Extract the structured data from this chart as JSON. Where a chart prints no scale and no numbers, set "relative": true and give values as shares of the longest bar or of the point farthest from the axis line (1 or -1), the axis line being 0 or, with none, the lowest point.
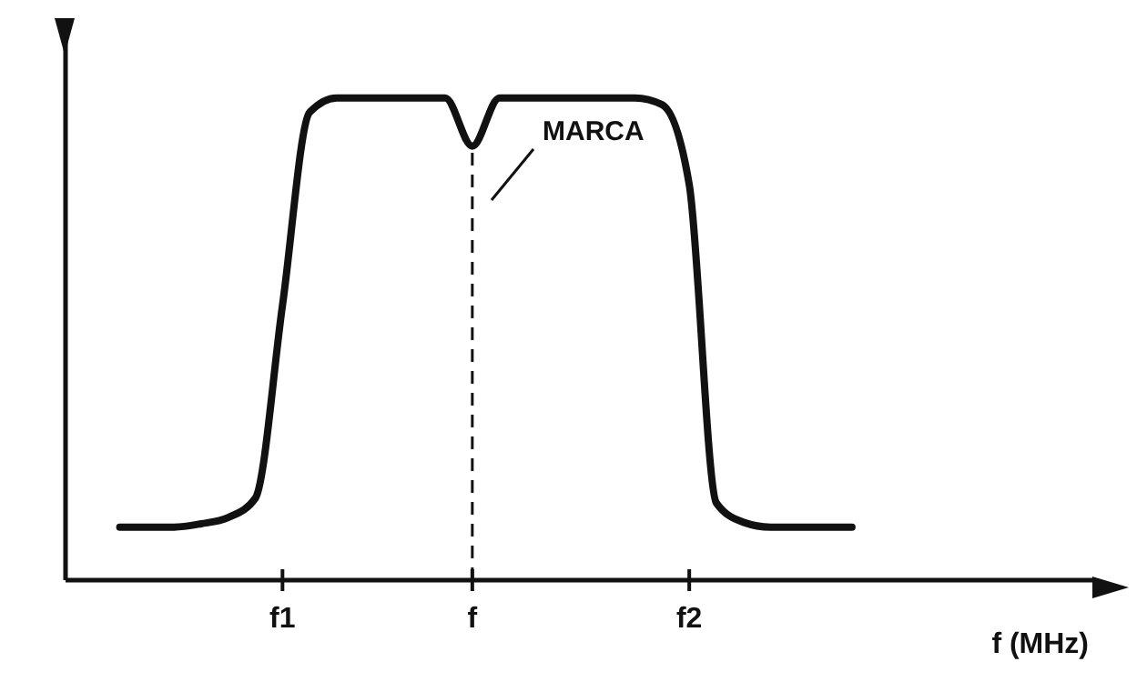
{
  "chart_data": {
    "type": "line",
    "relative": true,
    "xlabel": "f (MHz)",
    "categories": [
      null,
      null,
      null,
      null,
      null,
      null,
      null,
      null,
      "f1",
      null,
      null,
      null,
      null,
      null,
      null,
      "f",
      null,
      null,
      null,
      null,
      null,
      null,
      null,
      "f2",
      null,
      null,
      null,
      null,
      null,
      null,
      null,
      null,
      null,
      null,
      null,
      null,
      null,
      null,
      null
    ],
    "series": [
      {
        "color": "#111111",
        "values": [
          null,
          null,
          0.11,
          0.11,
          0.11,
          0.117,
          0.13,
          0.17,
          0.57,
          0.97,
          1,
          1,
          1,
          1,
          1,
          0.9,
          1,
          1,
          1,
          1,
          1,
          1,
          0.986,
          0.82,
          0.16,
          0.12,
          0.11,
          0.11,
          0.11,
          0.11,
          null,
          null,
          null,
          null,
          null,
          null,
          null,
          null,
          null
        ]
      }
    ],
    "ref_lines": [
      {
        "axis": "x",
        "value": "f",
        "line_style": "dashed",
        "color": "#111111"
      }
    ],
    "annotations": [
      "MARCA"
    ],
    "marker": "none",
    "line_style": "solid"
  }
}
